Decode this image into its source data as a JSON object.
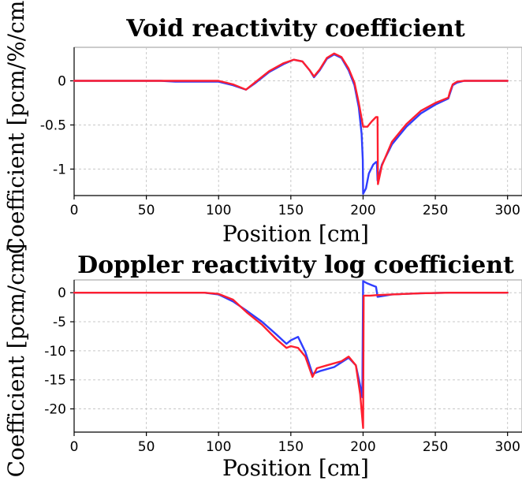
{
  "chart_data": [
    {
      "type": "line",
      "title": "Void reactivity coefficient",
      "xlabel": "Position [cm]",
      "ylabel": "Coefficient [pcm/%/cm]",
      "xlim": [
        0,
        310
      ],
      "ylim": [
        -1.3,
        0.38
      ],
      "xticks": [
        0,
        50,
        100,
        150,
        200,
        250,
        300
      ],
      "yticks": [
        0,
        -0.5,
        -1
      ],
      "ytick_labels": [
        "0",
        "-0.5",
        "-1"
      ],
      "grid": true,
      "colors": {
        "blue": "#2f3dff",
        "red": "#ff1f2f"
      },
      "series": [
        {
          "color": "#2f3dff",
          "points": [
            [
              0,
              0
            ],
            [
              60,
              0
            ],
            [
              70,
              -0.01
            ],
            [
              90,
              -0.01
            ],
            [
              100,
              -0.01
            ],
            [
              110,
              -0.05
            ],
            [
              119,
              -0.1
            ],
            [
              125,
              -0.03
            ],
            [
              135,
              0.1
            ],
            [
              145,
              0.19
            ],
            [
              152,
              0.24
            ],
            [
              158,
              0.22
            ],
            [
              163,
              0.12
            ],
            [
              166,
              0.04
            ],
            [
              170,
              0.12
            ],
            [
              175,
              0.25
            ],
            [
              180,
              0.3
            ],
            [
              185,
              0.26
            ],
            [
              190,
              0.12
            ],
            [
              194,
              -0.05
            ],
            [
              197,
              -0.3
            ],
            [
              199,
              -0.6
            ],
            [
              199.8,
              -0.9
            ],
            [
              200,
              -1.28
            ],
            [
              202,
              -1.22
            ],
            [
              204,
              -1.05
            ],
            [
              207,
              -0.95
            ],
            [
              209,
              -0.92
            ],
            [
              209.5,
              -0.92
            ],
            [
              210,
              -1.13
            ],
            [
              213,
              -0.95
            ],
            [
              220,
              -0.72
            ],
            [
              230,
              -0.52
            ],
            [
              240,
              -0.37
            ],
            [
              250,
              -0.27
            ],
            [
              259,
              -0.2
            ],
            [
              260,
              -0.15
            ],
            [
              262,
              -0.05
            ],
            [
              265,
              -0.02
            ],
            [
              270,
              0
            ],
            [
              300,
              0
            ]
          ]
        },
        {
          "color": "#ff1f2f",
          "points": [
            [
              0,
              0
            ],
            [
              90,
              0
            ],
            [
              100,
              0
            ],
            [
              110,
              -0.04
            ],
            [
              119,
              -0.1
            ],
            [
              125,
              -0.02
            ],
            [
              135,
              0.11
            ],
            [
              145,
              0.2
            ],
            [
              152,
              0.24
            ],
            [
              158,
              0.22
            ],
            [
              163,
              0.12
            ],
            [
              166,
              0.05
            ],
            [
              170,
              0.13
            ],
            [
              175,
              0.26
            ],
            [
              180,
              0.31
            ],
            [
              185,
              0.27
            ],
            [
              190,
              0.14
            ],
            [
              194,
              -0.02
            ],
            [
              197,
              -0.25
            ],
            [
              200,
              -0.52
            ],
            [
              203,
              -0.52
            ],
            [
              206,
              -0.46
            ],
            [
              209,
              -0.41
            ],
            [
              210,
              -0.41
            ],
            [
              210.3,
              -1.17
            ],
            [
              213,
              -0.96
            ],
            [
              220,
              -0.69
            ],
            [
              230,
              -0.49
            ],
            [
              240,
              -0.34
            ],
            [
              250,
              -0.25
            ],
            [
              259,
              -0.19
            ],
            [
              260,
              -0.13
            ],
            [
              262,
              -0.04
            ],
            [
              265,
              -0.01
            ],
            [
              270,
              0
            ],
            [
              300,
              0
            ]
          ]
        }
      ]
    },
    {
      "type": "line",
      "title": "Doppler reactivity log coefficient",
      "xlabel": "Position [cm]",
      "ylabel": "Coefficient [pcm/cm]",
      "xlim": [
        0,
        310
      ],
      "ylim": [
        -24,
        2.2
      ],
      "xticks": [
        0,
        50,
        100,
        150,
        200,
        250,
        300
      ],
      "yticks": [
        0,
        -5,
        -10,
        -15,
        -20
      ],
      "ytick_labels": [
        "0",
        "-5",
        "-10",
        "-15",
        "-20"
      ],
      "grid": true,
      "colors": {
        "blue": "#2f3dff",
        "red": "#ff1f2f"
      },
      "series": [
        {
          "color": "#2f3dff",
          "points": [
            [
              0,
              0
            ],
            [
              90,
              0
            ],
            [
              100,
              -0.3
            ],
            [
              110,
              -1.5
            ],
            [
              120,
              -3.2
            ],
            [
              130,
              -5
            ],
            [
              140,
              -7.2
            ],
            [
              147,
              -8.8
            ],
            [
              150,
              -8.2
            ],
            [
              155,
              -7.6
            ],
            [
              160,
              -10.2
            ],
            [
              165,
              -14
            ],
            [
              170,
              -13.5
            ],
            [
              180,
              -12.8
            ],
            [
              190,
              -11.2
            ],
            [
              195,
              -12.5
            ],
            [
              198,
              -16
            ],
            [
              199.5,
              -18
            ],
            [
              200,
              2
            ],
            [
              203,
              1.6
            ],
            [
              206,
              1.3
            ],
            [
              209,
              1
            ],
            [
              210,
              -0.7
            ],
            [
              220,
              -0.3
            ],
            [
              240,
              -0.1
            ],
            [
              260,
              0
            ],
            [
              300,
              0
            ]
          ]
        },
        {
          "color": "#ff1f2f",
          "points": [
            [
              0,
              0
            ],
            [
              90,
              0
            ],
            [
              100,
              -0.2
            ],
            [
              110,
              -1.2
            ],
            [
              120,
              -3.5
            ],
            [
              130,
              -5.5
            ],
            [
              140,
              -8
            ],
            [
              147,
              -9.5
            ],
            [
              150,
              -9.2
            ],
            [
              155,
              -9.5
            ],
            [
              160,
              -11
            ],
            [
              165,
              -14.5
            ],
            [
              168,
              -13
            ],
            [
              175,
              -12.5
            ],
            [
              185,
              -11.8
            ],
            [
              190,
              -11
            ],
            [
              195,
              -12.5
            ],
            [
              198,
              -17.5
            ],
            [
              200,
              -23.3
            ],
            [
              200.4,
              -0.5
            ],
            [
              205,
              -0.5
            ],
            [
              210,
              -0.4
            ],
            [
              220,
              -0.3
            ],
            [
              240,
              -0.1
            ],
            [
              260,
              0
            ],
            [
              300,
              0
            ]
          ]
        }
      ]
    }
  ]
}
